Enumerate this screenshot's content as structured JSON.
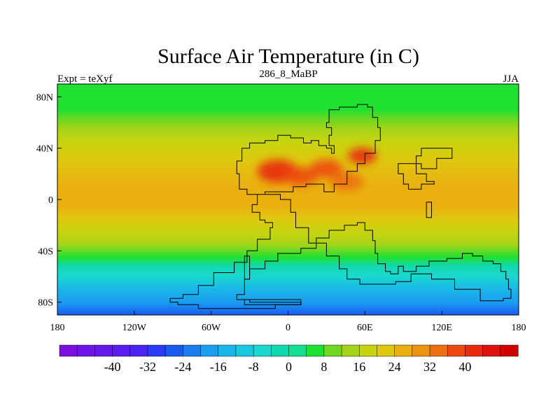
{
  "chart_data": {
    "type": "heatmap",
    "title": "Surface Air Temperature (in C)",
    "subtitle_left": "Expt = teXyf",
    "subtitle_center": "286_8_MaBP",
    "subtitle_right": "JJA",
    "xlim": [
      -180,
      180
    ],
    "ylim": [
      -90,
      90
    ],
    "x_ticks": [
      {
        "value": -180,
        "label": "180"
      },
      {
        "value": -120,
        "label": "120W"
      },
      {
        "value": -60,
        "label": "60W"
      },
      {
        "value": 0,
        "label": "0"
      },
      {
        "value": 60,
        "label": "60E"
      },
      {
        "value": 120,
        "label": "120E"
      },
      {
        "value": 180,
        "label": "180"
      }
    ],
    "y_ticks": [
      {
        "value": 80,
        "label": "80N"
      },
      {
        "value": 40,
        "label": "40N"
      },
      {
        "value": 0,
        "label": "0"
      },
      {
        "value": -40,
        "label": "40S"
      },
      {
        "value": -80,
        "label": "80S"
      }
    ],
    "colorbar": {
      "levels": [
        -48,
        -44,
        -40,
        -36,
        -32,
        -28,
        -24,
        -20,
        -16,
        -12,
        -8,
        -4,
        0,
        4,
        8,
        12,
        16,
        20,
        24,
        28,
        32,
        36,
        40,
        44,
        48
      ],
      "colors": [
        "#7a0fe0",
        "#7014e6",
        "#6418ea",
        "#5a1cee",
        "#4a22f2",
        "#2a3af4",
        "#1a5af0",
        "#1a7ef0",
        "#1a9ef0",
        "#1ab6e8",
        "#1ac8e0",
        "#1ad8d0",
        "#12d8b0",
        "#10e090",
        "#20e030",
        "#70d820",
        "#a6d418",
        "#c8d410",
        "#e0c810",
        "#eab010",
        "#ec9410",
        "#ec7010",
        "#ec4a10",
        "#e82a10",
        "#e01010",
        "#d00000"
      ],
      "labels": [
        {
          "value": -40,
          "label": "-40"
        },
        {
          "value": -32,
          "label": "-32"
        },
        {
          "value": -24,
          "label": "-24"
        },
        {
          "value": -16,
          "label": "-16"
        },
        {
          "value": -8,
          "label": "-8"
        },
        {
          "value": 0,
          "label": "0"
        },
        {
          "value": 8,
          "label": "8"
        },
        {
          "value": 16,
          "label": "16"
        },
        {
          "value": 24,
          "label": "24"
        },
        {
          "value": 32,
          "label": "32"
        },
        {
          "value": 40,
          "label": "40"
        }
      ]
    },
    "zonal_profile": [
      {
        "lat": 90,
        "value": 6
      },
      {
        "lat": 70,
        "value": 7
      },
      {
        "lat": 62,
        "value": 10
      },
      {
        "lat": 55,
        "value": 13
      },
      {
        "lat": 45,
        "value": 17
      },
      {
        "lat": 30,
        "value": 22
      },
      {
        "lat": 10,
        "value": 25
      },
      {
        "lat": -5,
        "value": 24
      },
      {
        "lat": -15,
        "value": 22
      },
      {
        "lat": -25,
        "value": 18
      },
      {
        "lat": -35,
        "value": 13
      },
      {
        "lat": -45,
        "value": 4
      },
      {
        "lat": -52,
        "value": -2
      },
      {
        "lat": -60,
        "value": -8
      },
      {
        "lat": -70,
        "value": -14
      },
      {
        "lat": -80,
        "value": -20
      },
      {
        "lat": -90,
        "value": -26
      }
    ],
    "continent_outline_lonlat": [
      [
        -18,
        -18
      ],
      [
        -12,
        -22
      ],
      [
        -14,
        -31
      ],
      [
        -22,
        -31
      ],
      [
        -24,
        -40
      ],
      [
        -30,
        -40
      ],
      [
        -32,
        -49
      ],
      [
        -40,
        -49
      ],
      [
        -42,
        -57
      ],
      [
        -52,
        -57
      ],
      [
        -58,
        -67
      ],
      [
        -70,
        -74
      ],
      [
        -82,
        -77
      ],
      [
        -92,
        -80
      ],
      [
        -86,
        -82
      ],
      [
        -70,
        -85
      ],
      [
        -30,
        -85
      ],
      [
        -10,
        -82
      ],
      [
        6,
        -82
      ],
      [
        10,
        -80
      ],
      [
        -30,
        -78
      ],
      [
        -40,
        -74
      ],
      [
        -34,
        -62
      ],
      [
        -30,
        -54
      ],
      [
        -18,
        -48
      ],
      [
        -8,
        -42
      ],
      [
        10,
        -38
      ],
      [
        22,
        -30
      ],
      [
        32,
        -24
      ],
      [
        44,
        -20
      ],
      [
        54,
        -18
      ],
      [
        60,
        -24
      ],
      [
        66,
        -32
      ],
      [
        68,
        -42
      ],
      [
        70,
        -50
      ],
      [
        76,
        -56
      ],
      [
        80,
        -58
      ],
      [
        86,
        -52
      ],
      [
        90,
        -56
      ],
      [
        100,
        -52
      ],
      [
        110,
        -48
      ],
      [
        124,
        -46
      ],
      [
        136,
        -42
      ],
      [
        144,
        -44
      ],
      [
        152,
        -48
      ],
      [
        160,
        -50
      ],
      [
        166,
        -56
      ],
      [
        170,
        -62
      ],
      [
        172,
        -70
      ],
      [
        174,
        -77
      ],
      [
        168,
        -79
      ],
      [
        150,
        -70
      ],
      [
        130,
        -62
      ],
      [
        112,
        -58
      ],
      [
        96,
        -64
      ],
      [
        84,
        -66
      ],
      [
        70,
        -66
      ],
      [
        56,
        -62
      ],
      [
        46,
        -54
      ],
      [
        40,
        -44
      ],
      [
        30,
        -34
      ],
      [
        16,
        -22
      ],
      [
        6,
        -10
      ],
      [
        2,
        0
      ],
      [
        -6,
        4
      ],
      [
        -20,
        4
      ],
      [
        -32,
        8
      ],
      [
        -38,
        20
      ],
      [
        -40,
        30
      ],
      [
        -36,
        40
      ],
      [
        -30,
        44
      ],
      [
        -18,
        46
      ],
      [
        -8,
        50
      ],
      [
        2,
        48
      ],
      [
        12,
        44
      ],
      [
        18,
        46
      ],
      [
        24,
        42
      ],
      [
        30,
        40
      ],
      [
        34,
        36
      ],
      [
        36,
        42
      ],
      [
        32,
        50
      ],
      [
        34,
        56
      ],
      [
        30,
        60
      ],
      [
        32,
        70
      ],
      [
        40,
        72
      ],
      [
        54,
        74
      ],
      [
        62,
        72
      ],
      [
        66,
        64
      ],
      [
        70,
        56
      ],
      [
        72,
        46
      ],
      [
        68,
        36
      ],
      [
        60,
        28
      ],
      [
        54,
        22
      ],
      [
        46,
        12
      ],
      [
        36,
        6
      ],
      [
        28,
        12
      ],
      [
        14,
        10
      ],
      [
        4,
        6
      ],
      [
        -8,
        6
      ],
      [
        -18,
        4
      ],
      [
        -24,
        -4
      ],
      [
        -28,
        -10
      ],
      [
        -22,
        -16
      ],
      [
        -18,
        -18
      ]
    ],
    "island_outlines_lonlat": [
      [
        [
          104,
          40
        ],
        [
          126,
          40
        ],
        [
          128,
          32
        ],
        [
          116,
          24
        ],
        [
          104,
          28
        ],
        [
          100,
          34
        ],
        [
          104,
          40
        ]
      ],
      [
        [
          86,
          28
        ],
        [
          94,
          28
        ],
        [
          100,
          20
        ],
        [
          108,
          14
        ],
        [
          114,
          12
        ],
        [
          104,
          8
        ],
        [
          94,
          12
        ],
        [
          90,
          20
        ],
        [
          86,
          28
        ]
      ],
      [
        [
          108,
          -2
        ],
        [
          112,
          -2
        ],
        [
          112,
          -14
        ],
        [
          108,
          -14
        ],
        [
          108,
          -2
        ]
      ],
      [
        [
          -34,
          -44
        ],
        [
          -30,
          -44
        ],
        [
          -30,
          -62
        ],
        [
          -34,
          -62
        ],
        [
          -34,
          -44
        ]
      ],
      [
        [
          -34,
          -78
        ],
        [
          10,
          -78
        ],
        [
          10,
          -82
        ],
        [
          -34,
          -82
        ],
        [
          -34,
          -78
        ]
      ]
    ],
    "warm_anomalies_lonlat": [
      {
        "lon": -8,
        "lat": 22,
        "r": 10,
        "value": 40
      },
      {
        "lon": 10,
        "lat": 18,
        "r": 8,
        "value": 38
      },
      {
        "lon": 30,
        "lat": 24,
        "r": 8,
        "value": 36
      },
      {
        "lon": 58,
        "lat": 34,
        "r": 7,
        "value": 40
      },
      {
        "lon": 46,
        "lat": 14,
        "r": 8,
        "value": 34
      }
    ]
  }
}
